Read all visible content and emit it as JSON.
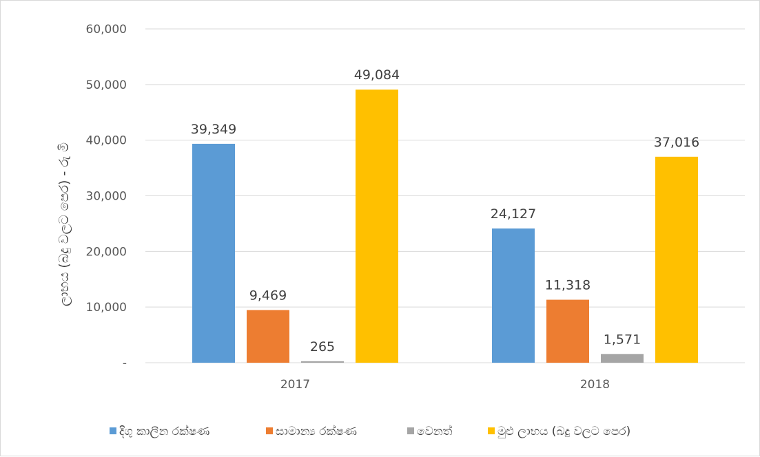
{
  "chart_data": {
    "type": "bar",
    "categories": [
      "2017",
      "2018"
    ],
    "series": [
      {
        "name": "දිගු කාලීන රක්ෂණ",
        "color": "#5b9bd5",
        "values": [
          39349,
          24127
        ],
        "labels": [
          "39,349",
          "24,127"
        ]
      },
      {
        "name": "සාමාන්‍ය රක්ෂණ",
        "color": "#ed7d31",
        "values": [
          9469,
          11318
        ],
        "labels": [
          "9,469",
          "11,318"
        ]
      },
      {
        "name": "වෙනත්",
        "color": "#a5a5a5",
        "values": [
          265,
          1571
        ],
        "labels": [
          "265",
          "1,571"
        ]
      },
      {
        "name": "මුළු ලාභය (බදු වලට පෙර)",
        "color": "#ffc000",
        "values": [
          49084,
          37016
        ],
        "labels": [
          "49,084",
          "37,016"
        ]
      }
    ],
    "ylabel": "ලාභය (බදු වලට පෙර) - රු මි",
    "ylim": [
      0,
      60000
    ],
    "yticks": [
      {
        "value": 0,
        "label": "-"
      },
      {
        "value": 10000,
        "label": "10,000"
      },
      {
        "value": 20000,
        "label": "20,000"
      },
      {
        "value": 30000,
        "label": "30,000"
      },
      {
        "value": 40000,
        "label": "40,000"
      },
      {
        "value": 50000,
        "label": "50,000"
      },
      {
        "value": 60000,
        "label": "60,000"
      }
    ],
    "grid": true,
    "legend_position": "bottom"
  }
}
